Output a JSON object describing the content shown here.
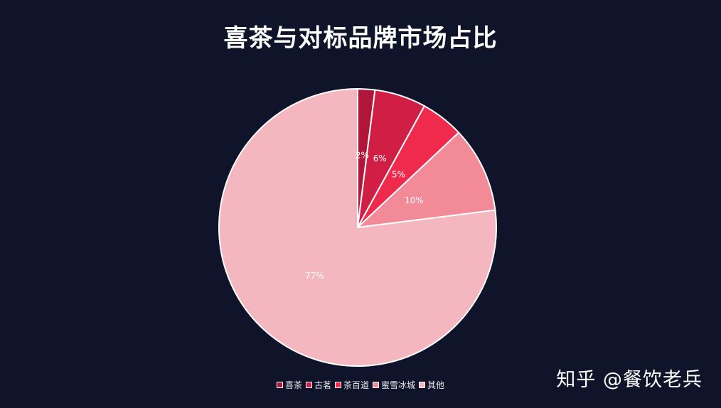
{
  "chart_data": {
    "type": "pie",
    "title": "喜茶与对标品牌市场占比",
    "categories": [
      "喜茶",
      "古茗",
      "茶百道",
      "蜜雪冰城",
      "其他"
    ],
    "values": [
      2,
      6,
      5,
      10,
      77
    ],
    "labels": [
      "2%",
      "6%",
      "5%",
      "10%",
      "77%"
    ],
    "colors": [
      "#b0163a",
      "#d11e45",
      "#f02a4c",
      "#f28a98",
      "#f5b7bf"
    ],
    "legend_position": "bottom",
    "start_angle": "top",
    "direction": "clockwise"
  },
  "watermark": "知乎 @餐饮老兵"
}
